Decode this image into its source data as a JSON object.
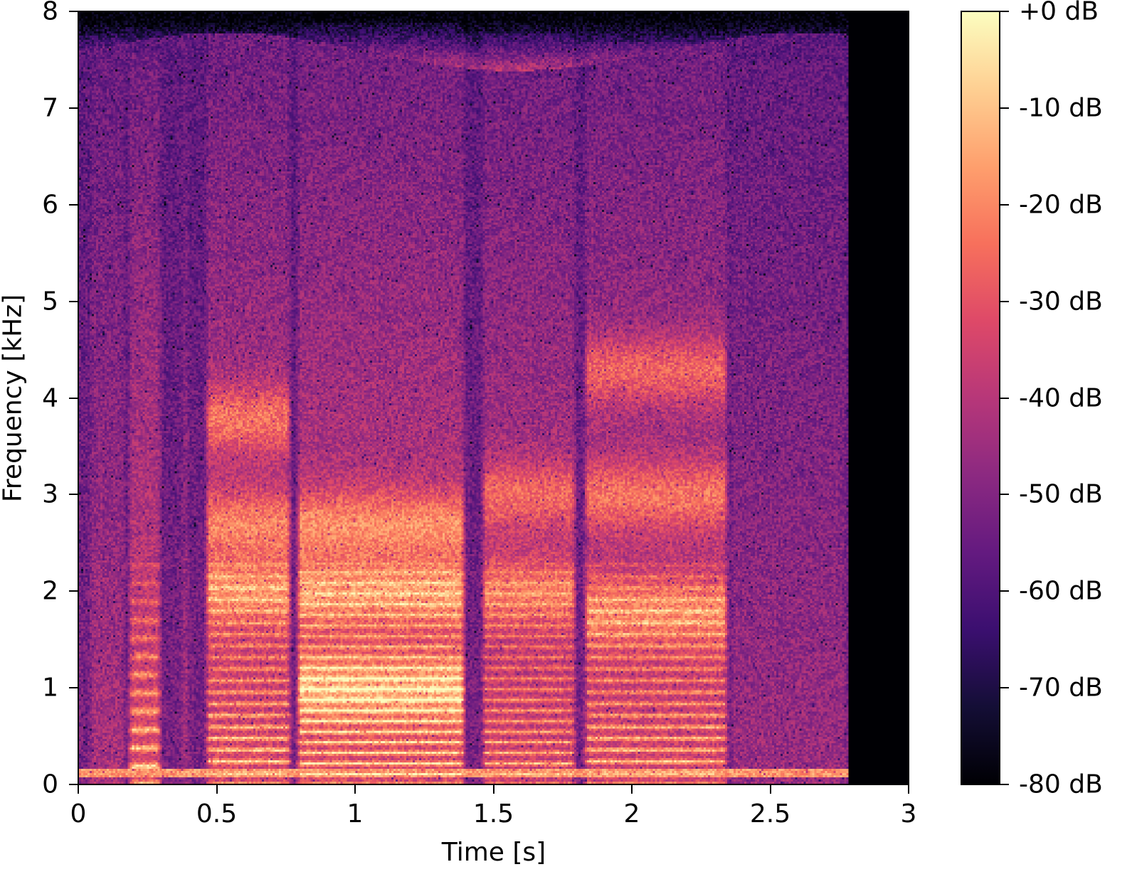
{
  "chart_data": {
    "type": "heatmap",
    "subtype": "spectrogram",
    "title": "",
    "xlabel": "Time [s]",
    "ylabel": "Frequency [kHz]",
    "xlim": [
      0,
      3
    ],
    "ylim": [
      0,
      8
    ],
    "x_ticks": [
      "0",
      "0.5",
      "1",
      "1.5",
      "2",
      "2.5",
      "3"
    ],
    "x_tick_values": [
      0,
      0.5,
      1,
      1.5,
      2,
      2.5,
      3
    ],
    "y_ticks": [
      "0",
      "1",
      "2",
      "3",
      "4",
      "5",
      "6",
      "7",
      "8"
    ],
    "y_tick_values": [
      0,
      1,
      2,
      3,
      4,
      5,
      6,
      7,
      8
    ],
    "colormap": "magma",
    "colorbar": {
      "label": "",
      "range": [
        -80,
        0
      ],
      "ticks": [
        "+0 dB",
        "-10 dB",
        "-20 dB",
        "-30 dB",
        "-40 dB",
        "-50 dB",
        "-60 dB",
        "-70 dB",
        "-80 dB"
      ],
      "tick_values": [
        0,
        -10,
        -20,
        -30,
        -40,
        -50,
        -60,
        -70,
        -80
      ],
      "position": "right"
    },
    "signal_end_s": 2.78,
    "grid": false,
    "features": [
      {
        "desc": "constant low-frequency line",
        "freq_khz": 0.12,
        "t_start": 0.0,
        "t_end": 2.78,
        "level_db": -15
      },
      {
        "desc": "voiced segment harmonics",
        "t_start": 0.17,
        "t_end": 0.3,
        "max_freq_khz": 2.2,
        "level_db": -10
      },
      {
        "desc": "narrow vertical burst",
        "t_start": 0.36,
        "t_end": 0.4,
        "max_freq_khz": 7.8,
        "level_db": -40
      },
      {
        "desc": "voiced segment harmonics + formants",
        "t_start": 0.45,
        "t_end": 0.77,
        "max_freq_khz": 2.2,
        "level_db": -8
      },
      {
        "desc": "voiced segment broad formants",
        "t_start": 0.8,
        "t_end": 1.4,
        "formant_khz": [
          1.0,
          2.0,
          2.7
        ],
        "level_db": -5
      },
      {
        "desc": "voiced segment",
        "t_start": 1.45,
        "t_end": 1.8,
        "max_freq_khz": 2.2,
        "level_db": -15
      },
      {
        "desc": "voiced segment with formant glide",
        "t_start": 1.82,
        "t_end": 2.35,
        "formant_khz": [
          0.5,
          1.8,
          3.0
        ],
        "level_db": -10
      },
      {
        "desc": "trailing noise/silence",
        "t_start": 2.35,
        "t_end": 2.78,
        "level_db": -55
      },
      {
        "desc": "zero-padded region (no signal)",
        "t_start": 2.78,
        "t_end": 3.0,
        "level_db": -80
      }
    ]
  }
}
